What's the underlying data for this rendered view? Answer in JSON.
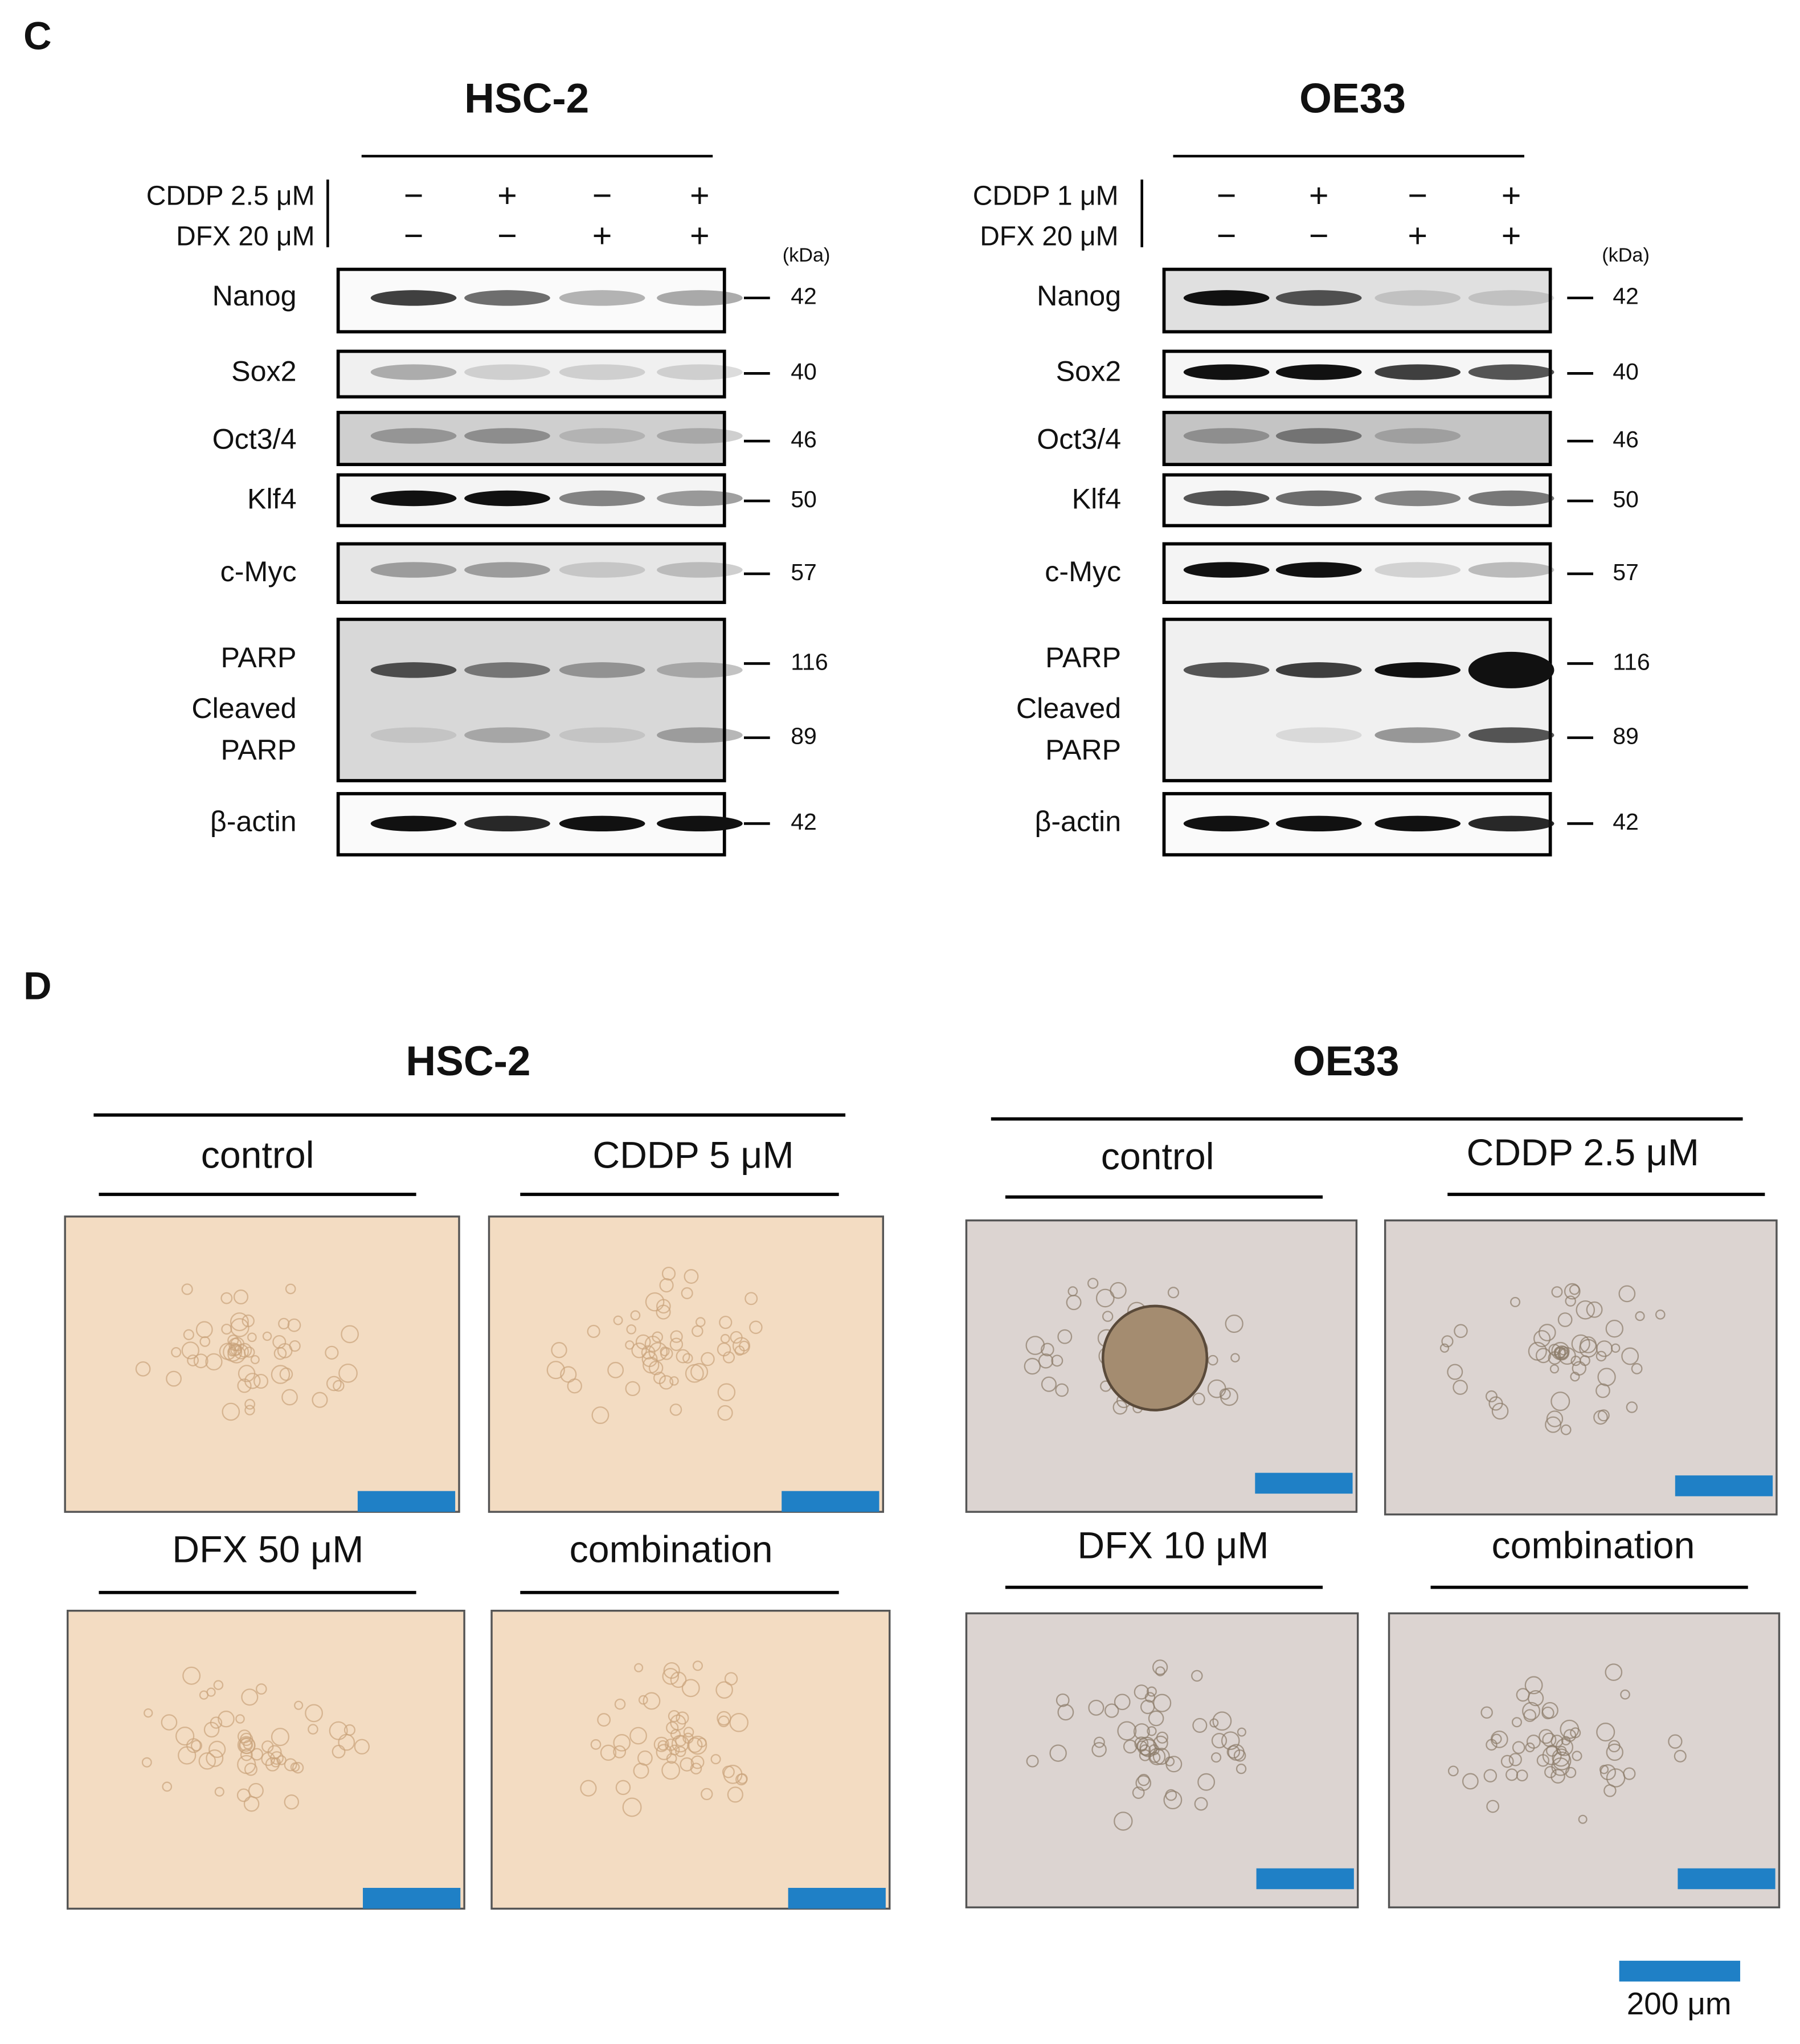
{
  "panel_c": {
    "label": "C",
    "blots": [
      {
        "title": "HSC-2",
        "kda_unit": "(kDa)",
        "treatments": [
          {
            "label": "CDDP 2.5 μM",
            "signs": [
              "−",
              "+",
              "−",
              "+"
            ]
          },
          {
            "label": "DFX 20 μM",
            "signs": [
              "−",
              "−",
              "+",
              "+"
            ]
          }
        ],
        "rows": [
          {
            "proteins": [
              "Nanog"
            ],
            "kda": [
              42
            ]
          },
          {
            "proteins": [
              "Sox2"
            ],
            "kda": [
              40
            ]
          },
          {
            "proteins": [
              "Oct3/4"
            ],
            "kda": [
              46
            ]
          },
          {
            "proteins": [
              "Klf4"
            ],
            "kda": [
              50
            ]
          },
          {
            "proteins": [
              "c-Myc"
            ],
            "kda": [
              57
            ]
          },
          {
            "proteins": [
              "PARP",
              "Cleaved",
              "PARP"
            ],
            "kda": [
              116,
              89
            ]
          },
          {
            "proteins": [
              "β-actin"
            ],
            "kda": [
              42
            ]
          }
        ]
      },
      {
        "title": "OE33",
        "kda_unit": "(kDa)",
        "treatments": [
          {
            "label": "CDDP 1 μM",
            "signs": [
              "−",
              "+",
              "−",
              "+"
            ]
          },
          {
            "label": "DFX 20 μM",
            "signs": [
              "−",
              "−",
              "+",
              "+"
            ]
          }
        ],
        "rows": [
          {
            "proteins": [
              "Nanog"
            ],
            "kda": [
              42
            ]
          },
          {
            "proteins": [
              "Sox2"
            ],
            "kda": [
              40
            ]
          },
          {
            "proteins": [
              "Oct3/4"
            ],
            "kda": [
              46
            ]
          },
          {
            "proteins": [
              "Klf4"
            ],
            "kda": [
              50
            ]
          },
          {
            "proteins": [
              "c-Myc"
            ],
            "kda": [
              57
            ]
          },
          {
            "proteins": [
              "PARP",
              "Cleaved",
              "PARP"
            ],
            "kda": [
              116,
              89
            ]
          },
          {
            "proteins": [
              "β-actin"
            ],
            "kda": [
              42
            ]
          }
        ]
      }
    ]
  },
  "panel_d": {
    "label": "D",
    "groups": [
      {
        "title": "HSC-2",
        "images": [
          "control",
          "CDDP 5 μM",
          "DFX 50 μM",
          "combination"
        ]
      },
      {
        "title": "OE33",
        "images": [
          "control",
          "CDDP 2.5 μM",
          "DFX 10 μM",
          "combination"
        ]
      }
    ],
    "scale_bar": "200 μm"
  }
}
